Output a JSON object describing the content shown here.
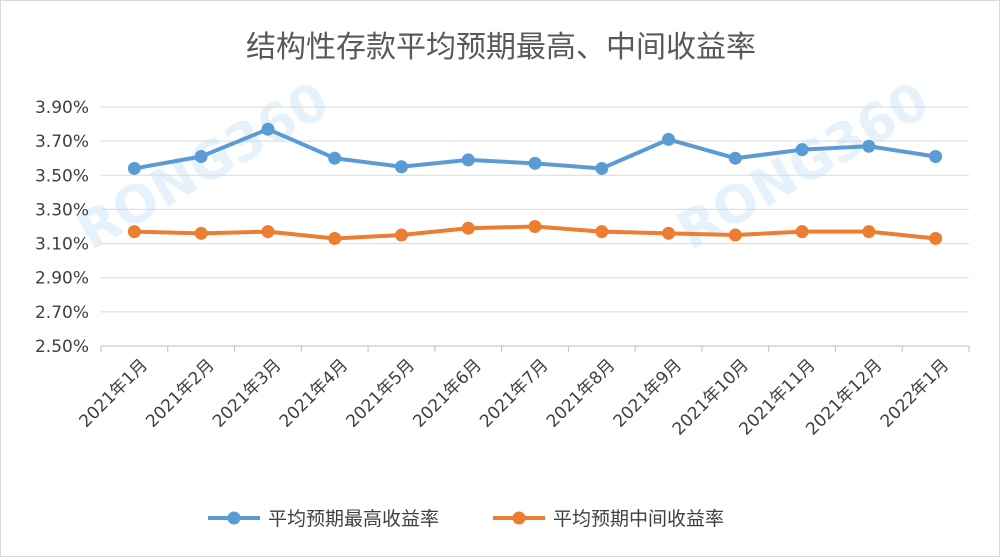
{
  "chart_data": {
    "type": "line",
    "title": "结构性存款平均预期最高、中间收益率",
    "categories": [
      "2021年1月",
      "2021年2月",
      "2021年3月",
      "2021年4月",
      "2021年5月",
      "2021年6月",
      "2021年7月",
      "2021年8月",
      "2021年9月",
      "2021年10月",
      "2021年11月",
      "2021年12月",
      "2022年1月"
    ],
    "series": [
      {
        "name": "平均预期最高收益率",
        "color": "#5b9bd5",
        "values": [
          3.54,
          3.61,
          3.77,
          3.6,
          3.55,
          3.59,
          3.57,
          3.54,
          3.71,
          3.6,
          3.65,
          3.67,
          3.61
        ]
      },
      {
        "name": "平均预期中间收益率",
        "color": "#ed7d31",
        "values": [
          3.17,
          3.16,
          3.17,
          3.13,
          3.15,
          3.19,
          3.2,
          3.17,
          3.16,
          3.15,
          3.17,
          3.17,
          3.13
        ]
      }
    ],
    "yticks": [
      "3.90%",
      "3.70%",
      "3.50%",
      "3.30%",
      "3.10%",
      "2.90%",
      "2.70%",
      "2.50%"
    ],
    "ylim": [
      2.5,
      3.9
    ],
    "ytick_values": [
      3.9,
      3.7,
      3.5,
      3.3,
      3.1,
      2.9,
      2.7,
      2.5
    ],
    "xlabel": "",
    "ylabel": "",
    "grid": true,
    "legend_position": "bottom"
  },
  "watermark": "RONG360"
}
